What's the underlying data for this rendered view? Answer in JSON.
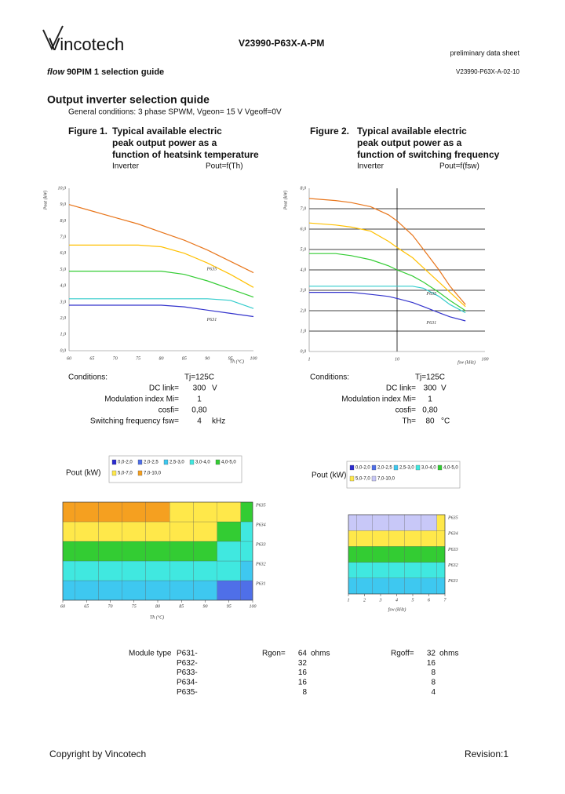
{
  "header": {
    "logo": "Vincotech",
    "doc_id": "V23990-P63X-A-PM",
    "status": "preliminary data sheet",
    "product": {
      "flow": "flow",
      "rest": "90PIM 1  selection guide"
    },
    "doc_rev": "V23990-P63X-A-02-10"
  },
  "section": {
    "title": "Output inverter selection quide",
    "conditions": "General conditions: 3 phase SPWM, Vgeon=   15 V   Vgeoff=0V"
  },
  "chart_data": [
    {
      "type": "line",
      "figure": "Figure 1.",
      "title": [
        "Typical available electric",
        "peak output power as a",
        "function of heatsink temperature"
      ],
      "subtitle": "Inverter",
      "function": "Pout=f(Th)",
      "x_label": "Th (°C)",
      "y_label": "Pout (kW)",
      "x": [
        60,
        65,
        70,
        75,
        80,
        85,
        90,
        95,
        100
      ],
      "xlim": [
        60,
        100
      ],
      "xticks": [
        60,
        65,
        70,
        75,
        80,
        85,
        90,
        95,
        100
      ],
      "ylim": [
        0,
        10
      ],
      "yticks": [
        {
          "value": 0,
          "label": "0,0"
        },
        {
          "value": 1,
          "label": "1,0"
        },
        {
          "value": 2,
          "label": "2,0"
        },
        {
          "value": 3,
          "label": "3,0"
        },
        {
          "value": 4,
          "label": "4,0"
        },
        {
          "value": 5,
          "label": "5,0"
        },
        {
          "value": 6,
          "label": "6,0"
        },
        {
          "value": 7,
          "label": "7,0"
        },
        {
          "value": 8,
          "label": "8,0"
        },
        {
          "value": 9,
          "label": "9,0"
        },
        {
          "value": 10,
          "label": "10,0"
        }
      ],
      "grid": false,
      "series": [
        {
          "color": "#e8751a",
          "values": [
            9.0,
            8.6,
            8.2,
            7.8,
            7.3,
            6.8,
            6.2,
            5.5,
            4.8
          ]
        },
        {
          "color": "#ffc000",
          "values": [
            6.5,
            6.5,
            6.5,
            6.5,
            6.4,
            6.0,
            5.4,
            4.7,
            3.9
          ]
        },
        {
          "color": "#33cc33",
          "values": [
            4.9,
            4.9,
            4.9,
            4.9,
            4.9,
            4.7,
            4.3,
            3.8,
            3.3
          ]
        },
        {
          "color": "#33cccc",
          "values": [
            3.2,
            3.2,
            3.2,
            3.2,
            3.2,
            3.2,
            3.2,
            3.1,
            2.6
          ]
        },
        {
          "color": "#3333cc",
          "values": [
            2.8,
            2.8,
            2.8,
            2.8,
            2.8,
            2.7,
            2.5,
            2.3,
            2.1
          ]
        }
      ],
      "annotations": [
        "P635",
        "P631"
      ],
      "conditions_heading": "Conditions:",
      "conditions": [
        {
          "value": "Tj=125C"
        },
        {
          "label": "DC link=",
          "value": "300",
          "unit": "V"
        },
        {
          "label": "Modulation index Mi=",
          "value": "1"
        },
        {
          "label": "cosfi=",
          "value": "0,80"
        },
        {
          "label": "Switching frequency fsw=",
          "value": "4",
          "unit": "kHz"
        }
      ]
    },
    {
      "type": "line",
      "figure": "Figure 2.",
      "title": [
        "Typical available electric",
        "peak output power as a",
        "function of switching frequency"
      ],
      "subtitle": "Inverter",
      "function": "Pout=f(fsw)",
      "x_label": "fsw (kHz)",
      "y_label": "Pout (kW)",
      "x": [
        1,
        2,
        3,
        5,
        8,
        10,
        15,
        20,
        30,
        40,
        60
      ],
      "xscale": "log",
      "xlim": [
        1,
        100
      ],
      "xticks": [
        1,
        10,
        100
      ],
      "ylim": [
        0,
        8
      ],
      "yticks": [
        {
          "value": 0,
          "label": "0,0"
        },
        {
          "value": 1,
          "label": "1,0"
        },
        {
          "value": 2,
          "label": "2,0"
        },
        {
          "value": 3,
          "label": "3,0"
        },
        {
          "value": 4,
          "label": "4,0"
        },
        {
          "value": 5,
          "label": "5,0"
        },
        {
          "value": 6,
          "label": "6,0"
        },
        {
          "value": 7,
          "label": "7,0"
        },
        {
          "value": 8,
          "label": "8,0"
        }
      ],
      "grid": true,
      "series": [
        {
          "color": "#e8751a",
          "values": [
            7.5,
            7.4,
            7.3,
            7.1,
            6.7,
            6.4,
            5.7,
            5.0,
            4.0,
            3.2,
            2.3
          ]
        },
        {
          "color": "#ffc000",
          "values": [
            6.3,
            6.2,
            6.1,
            5.9,
            5.4,
            5.1,
            4.6,
            4.1,
            3.4,
            2.9,
            2.2
          ]
        },
        {
          "color": "#33cc33",
          "values": [
            4.8,
            4.8,
            4.7,
            4.5,
            4.2,
            4.0,
            3.7,
            3.4,
            2.9,
            2.5,
            2.0
          ]
        },
        {
          "color": "#33cccc",
          "values": [
            3.2,
            3.2,
            3.2,
            3.2,
            3.2,
            3.2,
            3.2,
            3.1,
            2.7,
            2.3,
            1.9
          ]
        },
        {
          "color": "#3333cc",
          "values": [
            2.9,
            2.9,
            2.9,
            2.8,
            2.7,
            2.6,
            2.4,
            2.2,
            1.9,
            1.7,
            1.5
          ]
        }
      ],
      "annotations": [
        "P635",
        "P631"
      ],
      "conditions_heading": "Conditions:",
      "conditions": [
        {
          "value": "Tj=125C"
        },
        {
          "label": "DC link=",
          "value": "300",
          "unit": "V"
        },
        {
          "label": "Modulation index Mi=",
          "value": "1"
        },
        {
          "label": "cosfi=",
          "value": "0,80"
        },
        {
          "label": "Th=",
          "value": "80",
          "unit": "°C"
        }
      ]
    },
    {
      "type": "heatmap",
      "legend_title": "Pout (kW)",
      "x_label": "Th (°C)",
      "x": [
        60,
        65,
        70,
        75,
        80,
        85,
        90,
        95,
        100
      ],
      "xlim": [
        60,
        100
      ],
      "xticks": [
        60,
        65,
        70,
        75,
        80,
        85,
        90,
        95,
        100
      ],
      "rows": [
        "P631",
        "P632",
        "P633",
        "P634",
        "P635"
      ],
      "values": [
        [
          2.8,
          2.8,
          2.8,
          2.8,
          2.8,
          2.7,
          2.5,
          2.3,
          2.1
        ],
        [
          3.2,
          3.2,
          3.2,
          3.2,
          3.2,
          3.2,
          3.2,
          3.1,
          2.6
        ],
        [
          4.9,
          4.9,
          4.9,
          4.9,
          4.9,
          4.7,
          4.3,
          3.8,
          3.3
        ],
        [
          6.5,
          6.5,
          6.5,
          6.5,
          6.4,
          6.0,
          5.4,
          4.7,
          3.9
        ],
        [
          9.0,
          8.6,
          8.2,
          7.8,
          7.3,
          6.8,
          6.2,
          5.5,
          4.8
        ]
      ],
      "legend": [
        {
          "value": [
            0,
            2
          ],
          "label": "0,0-2,0",
          "color": "#2a2ad0"
        },
        {
          "value": [
            2,
            2.5
          ],
          "label": "2,0-2,5",
          "color": "#4f6fe8"
        },
        {
          "value": [
            2.5,
            3
          ],
          "label": "2,5-3,0",
          "color": "#3ec8f0"
        },
        {
          "value": [
            3,
            4
          ],
          "label": "3,0-4,0",
          "color": "#40e8e0"
        },
        {
          "value": [
            4,
            5
          ],
          "label": "4,0-5,0",
          "color": "#33cc33"
        },
        {
          "value": [
            5,
            7
          ],
          "label": "5,0-7,0",
          "color": "#ffe84a"
        },
        {
          "value": [
            7,
            10
          ],
          "label": "7,0-10,0",
          "color": "#f5a020"
        }
      ]
    },
    {
      "type": "heatmap",
      "legend_title": "Pout (kW)",
      "x_label": "fsw (kHz)",
      "x": [
        1,
        2,
        3,
        4,
        5,
        6,
        7
      ],
      "xlim": [
        1,
        7
      ],
      "xticks": [
        1,
        2,
        3,
        4,
        5,
        6,
        7
      ],
      "rows": [
        "P631",
        "P632",
        "P633",
        "P634",
        "P635"
      ],
      "values": [
        [
          2.9,
          2.9,
          2.9,
          2.8,
          2.8,
          2.8,
          2.7
        ],
        [
          3.2,
          3.2,
          3.2,
          3.2,
          3.2,
          3.2,
          3.2
        ],
        [
          4.8,
          4.8,
          4.7,
          4.6,
          4.5,
          4.4,
          4.3
        ],
        [
          6.3,
          6.2,
          6.1,
          6.0,
          5.9,
          5.7,
          5.6
        ],
        [
          7.5,
          7.4,
          7.3,
          7.2,
          7.1,
          7.0,
          6.9
        ]
      ],
      "legend": [
        {
          "value": [
            0,
            2
          ],
          "label": "0,0-2,0",
          "color": "#2a2ad0"
        },
        {
          "value": [
            2,
            2.5
          ],
          "label": "2,0-2,5",
          "color": "#4f6fe8"
        },
        {
          "value": [
            2.5,
            3
          ],
          "label": "2,5-3,0",
          "color": "#3ec8f0"
        },
        {
          "value": [
            3,
            4
          ],
          "label": "3,0-4,0",
          "color": "#40e8e0"
        },
        {
          "value": [
            4,
            5
          ],
          "label": "4,0-5,0",
          "color": "#33cc33"
        },
        {
          "value": [
            5,
            7
          ],
          "label": "5,0-7,0",
          "color": "#ffe84a"
        },
        {
          "value": [
            7,
            10
          ],
          "label": "7,0-10,0",
          "color": "#c8c8f8"
        }
      ]
    }
  ],
  "table": {
    "header": {
      "label": "Module type",
      "rgon": "Rgon=",
      "rgoff": "Rgoff=",
      "unit": "ohms"
    },
    "rows": [
      [
        "P631-",
        "64",
        "32"
      ],
      [
        "P632-",
        "32",
        "16"
      ],
      [
        "P633-",
        "16",
        "8"
      ],
      [
        "P634-",
        "16",
        "8"
      ],
      [
        "P635-",
        "8",
        "4"
      ]
    ]
  },
  "footer": {
    "copyright": "Copyright by Vincotech",
    "revision": "Revision:1"
  }
}
